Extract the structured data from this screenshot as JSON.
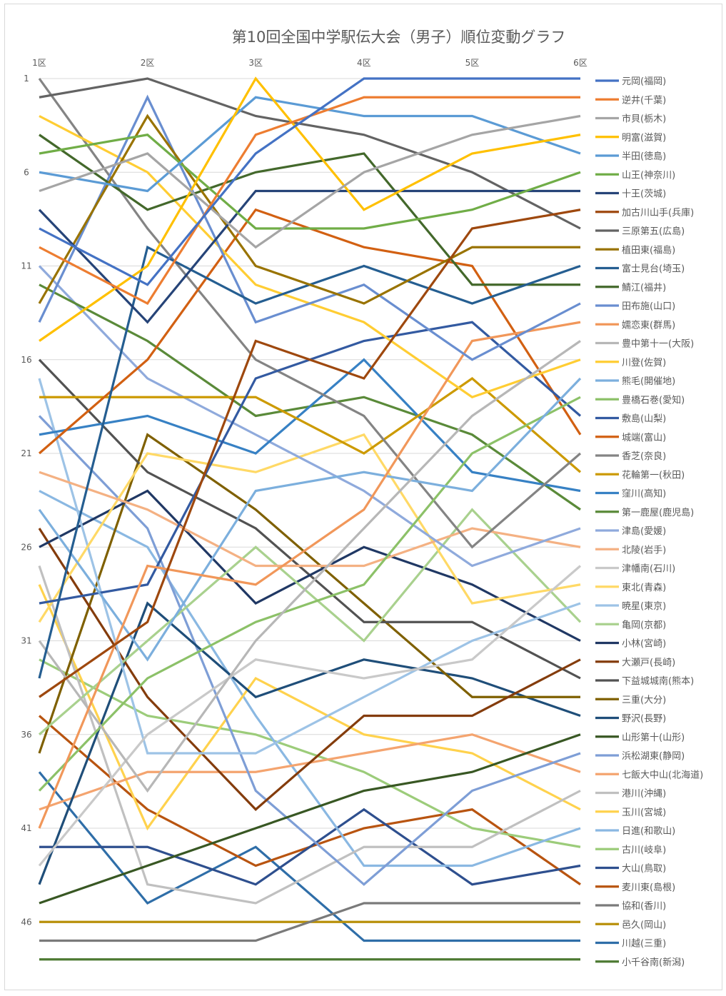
{
  "chart_data": {
    "type": "line",
    "title": "第10回全国中学駅伝大会（男子）順位変動グラフ",
    "categories": [
      "1区",
      "2区",
      "3区",
      "4区",
      "5区",
      "6区"
    ],
    "y_ticks": [
      "1",
      "6",
      "11",
      "16",
      "21",
      "26",
      "31",
      "36",
      "41",
      "46"
    ],
    "ylim": [
      1,
      48
    ],
    "y_reversed": true,
    "grid": true,
    "legend_position": "right",
    "series": [
      {
        "name": "元岡(福岡)",
        "color": "#4472C4",
        "values": [
          9,
          12,
          5,
          1,
          1,
          1
        ]
      },
      {
        "name": "逆井(千葉)",
        "color": "#ED7D31",
        "values": [
          10,
          13,
          4,
          2,
          2,
          2
        ]
      },
      {
        "name": "市貝(栃木)",
        "color": "#A5A5A5",
        "values": [
          7,
          5,
          10,
          6,
          4,
          3
        ]
      },
      {
        "name": "明富(滋賀)",
        "color": "#FFC000",
        "values": [
          15,
          11,
          1,
          8,
          5,
          4
        ]
      },
      {
        "name": "半田(徳島)",
        "color": "#5B9BD5",
        "values": [
          6,
          7,
          2,
          3,
          3,
          5
        ]
      },
      {
        "name": "山王(神奈川)",
        "color": "#70AD47",
        "values": [
          5,
          4,
          9,
          9,
          8,
          6
        ]
      },
      {
        "name": "十王(茨城)",
        "color": "#264478",
        "values": [
          8,
          14,
          7,
          7,
          7,
          7
        ]
      },
      {
        "name": "加古川山手(兵庫)",
        "color": "#9E480E",
        "values": [
          34,
          30,
          15,
          17,
          9,
          8
        ]
      },
      {
        "name": "三原第五(広島)",
        "color": "#636363",
        "values": [
          2,
          1,
          3,
          4,
          6,
          9
        ]
      },
      {
        "name": "植田東(福島)",
        "color": "#997300",
        "values": [
          13,
          3,
          11,
          13,
          10,
          10
        ]
      },
      {
        "name": "富士見台(埼玉)",
        "color": "#255E91",
        "values": [
          33,
          10,
          13,
          11,
          13,
          11
        ]
      },
      {
        "name": "鯖江(福井)",
        "color": "#43682B",
        "values": [
          4,
          8,
          6,
          5,
          12,
          12
        ]
      },
      {
        "name": "田布施(山口)",
        "color": "#698ED0",
        "values": [
          14,
          2,
          14,
          12,
          16,
          13
        ]
      },
      {
        "name": "嬬恋東(群馬)",
        "color": "#F1975A",
        "values": [
          41,
          27,
          28,
          24,
          15,
          14
        ]
      },
      {
        "name": "豊中第十一(大阪)",
        "color": "#B7B7B7",
        "values": [
          31,
          39,
          31,
          25,
          19,
          15
        ]
      },
      {
        "name": "川登(佐賀)",
        "color": "#FFCD33",
        "values": [
          3,
          6,
          12,
          14,
          18,
          16
        ]
      },
      {
        "name": "熊毛(開催地)",
        "color": "#7CAFDD",
        "values": [
          24,
          32,
          23,
          22,
          23,
          17
        ]
      },
      {
        "name": "豊橋石巻(愛知)",
        "color": "#8CC168",
        "values": [
          39,
          33,
          30,
          28,
          21,
          18
        ]
      },
      {
        "name": "敷島(山梨)",
        "color": "#335AA1",
        "values": [
          29,
          28,
          17,
          15,
          14,
          19
        ]
      },
      {
        "name": "城端(富山)",
        "color": "#D26012",
        "values": [
          21,
          16,
          8,
          10,
          11,
          20
        ]
      },
      {
        "name": "香芝(奈良)",
        "color": "#848484",
        "values": [
          1,
          9,
          16,
          19,
          26,
          21
        ]
      },
      {
        "name": "花輪第一(秋田)",
        "color": "#CC9A00",
        "values": [
          18,
          18,
          18,
          21,
          17,
          22
        ]
      },
      {
        "name": "窪川(高知)",
        "color": "#3781C4",
        "values": [
          20,
          19,
          21,
          16,
          22,
          23
        ]
      },
      {
        "name": "第一鹿屋(鹿児島)",
        "color": "#5A8A39",
        "values": [
          12,
          15,
          19,
          18,
          20,
          24
        ]
      },
      {
        "name": "津島(愛媛)",
        "color": "#8FAADC",
        "values": [
          11,
          17,
          20,
          23,
          27,
          25
        ]
      },
      {
        "name": "北陵(岩手)",
        "color": "#F4B183",
        "values": [
          22,
          24,
          27,
          27,
          25,
          26
        ]
      },
      {
        "name": "津幡南(石川)",
        "color": "#C9C9C9",
        "values": [
          43,
          36,
          32,
          33,
          32,
          27
        ]
      },
      {
        "name": "東北(青森)",
        "color": "#FFD966",
        "values": [
          30,
          21,
          22,
          20,
          29,
          28
        ]
      },
      {
        "name": "暁星(東京)",
        "color": "#9DC3E6",
        "values": [
          17,
          37,
          37,
          34,
          31,
          29
        ]
      },
      {
        "name": "亀岡(京都)",
        "color": "#A9D18E",
        "values": [
          36,
          31,
          26,
          31,
          24,
          30
        ]
      },
      {
        "name": "小林(宮崎)",
        "color": "#203864",
        "values": [
          26,
          23,
          29,
          26,
          28,
          31
        ]
      },
      {
        "name": "大瀬戸(長崎)",
        "color": "#843C0C",
        "values": [
          25,
          34,
          40,
          35,
          35,
          32
        ]
      },
      {
        "name": "下益城城南(熊本)",
        "color": "#525252",
        "values": [
          16,
          22,
          25,
          30,
          30,
          33
        ]
      },
      {
        "name": "三重(大分)",
        "color": "#7F6000",
        "values": [
          37,
          20,
          24,
          29,
          34,
          34
        ]
      },
      {
        "name": "野沢(長野)",
        "color": "#1F4E79",
        "values": [
          44,
          29,
          34,
          32,
          33,
          35
        ]
      },
      {
        "name": "山形第十(山形)",
        "color": "#385723",
        "values": [
          45,
          43,
          41,
          39,
          38,
          36
        ]
      },
      {
        "name": "浜松湖東(静岡)",
        "color": "#7E9ED6",
        "values": [
          19,
          25,
          39,
          44,
          39,
          37
        ]
      },
      {
        "name": "七飯大中山(北海道)",
        "color": "#F4A46F",
        "values": [
          40,
          38,
          38,
          37,
          36,
          38
        ]
      },
      {
        "name": "港川(沖縄)",
        "color": "#C0C0C0",
        "values": [
          27,
          44,
          45,
          42,
          42,
          39
        ]
      },
      {
        "name": "玉川(宮城)",
        "color": "#FFD24D",
        "values": [
          28,
          41,
          33,
          36,
          37,
          40
        ]
      },
      {
        "name": "日進(和歌山)",
        "color": "#8AB8E2",
        "values": [
          23,
          26,
          35,
          43,
          43,
          41
        ]
      },
      {
        "name": "古川(岐阜)",
        "color": "#9CCC7A",
        "values": [
          32,
          35,
          36,
          38,
          41,
          42
        ]
      },
      {
        "name": "大山(鳥取)",
        "color": "#2E4F8E",
        "values": [
          42,
          42,
          44,
          40,
          44,
          43
        ]
      },
      {
        "name": "麦川東(島根)",
        "color": "#B85410",
        "values": [
          35,
          40,
          43,
          41,
          40,
          44
        ]
      },
      {
        "name": "協和(香川)",
        "color": "#7A7A7A",
        "values": [
          47,
          47,
          47,
          45,
          45,
          45
        ]
      },
      {
        "name": "邑久(岡山)",
        "color": "#B8900A",
        "values": [
          46,
          46,
          46,
          46,
          46,
          46
        ]
      },
      {
        "name": "川越(三重)",
        "color": "#2F6EA8",
        "values": [
          38,
          45,
          42,
          47,
          47,
          47
        ]
      },
      {
        "name": "小千谷南(新潟)",
        "color": "#4D7A32",
        "values": [
          48,
          48,
          48,
          48,
          48,
          48
        ]
      }
    ]
  }
}
